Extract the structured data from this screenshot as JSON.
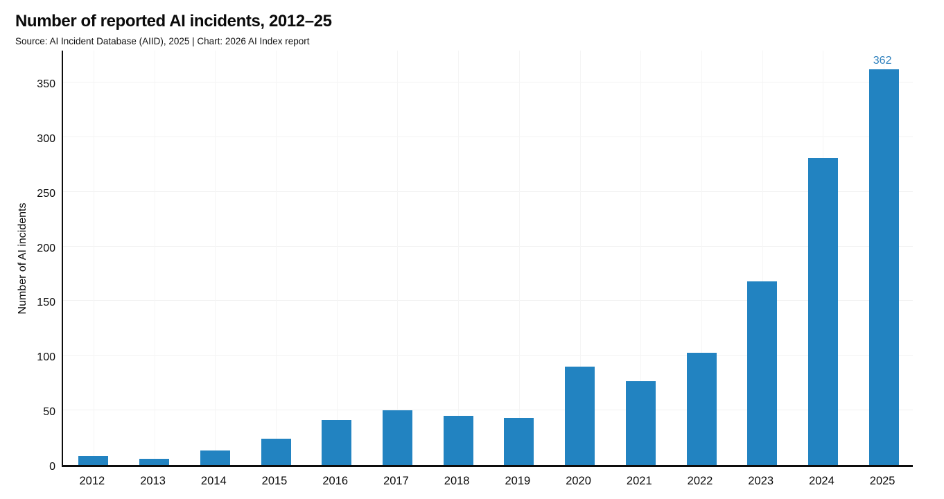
{
  "header": {
    "title": "Number of reported AI incidents, 2012–25",
    "subtitle": "Source: AI Incident Database (AIID), 2025 | Chart: 2026 AI Index report"
  },
  "chart_data": {
    "type": "bar",
    "title": "Number of reported AI incidents, 2012–25",
    "source": "Source: AI Incident Database (AIID), 2025 | Chart: 2026 AI Index report",
    "categories": [
      "2012",
      "2013",
      "2014",
      "2015",
      "2016",
      "2017",
      "2018",
      "2019",
      "2020",
      "2021",
      "2022",
      "2023",
      "2024",
      "2025"
    ],
    "values": [
      8,
      6,
      13,
      24,
      41,
      50,
      45,
      43,
      90,
      77,
      103,
      168,
      281,
      362
    ],
    "xlabel": "",
    "ylabel": "Number of AI incidents",
    "yticks": [
      0,
      50,
      100,
      150,
      200,
      250,
      300,
      350
    ],
    "ylim": [
      0,
      381
    ],
    "grid": true,
    "legend": "none",
    "bar_color": "#2283c1",
    "annotations": [
      {
        "category": "2025",
        "text": "362",
        "color": "#2e80bd"
      }
    ]
  }
}
